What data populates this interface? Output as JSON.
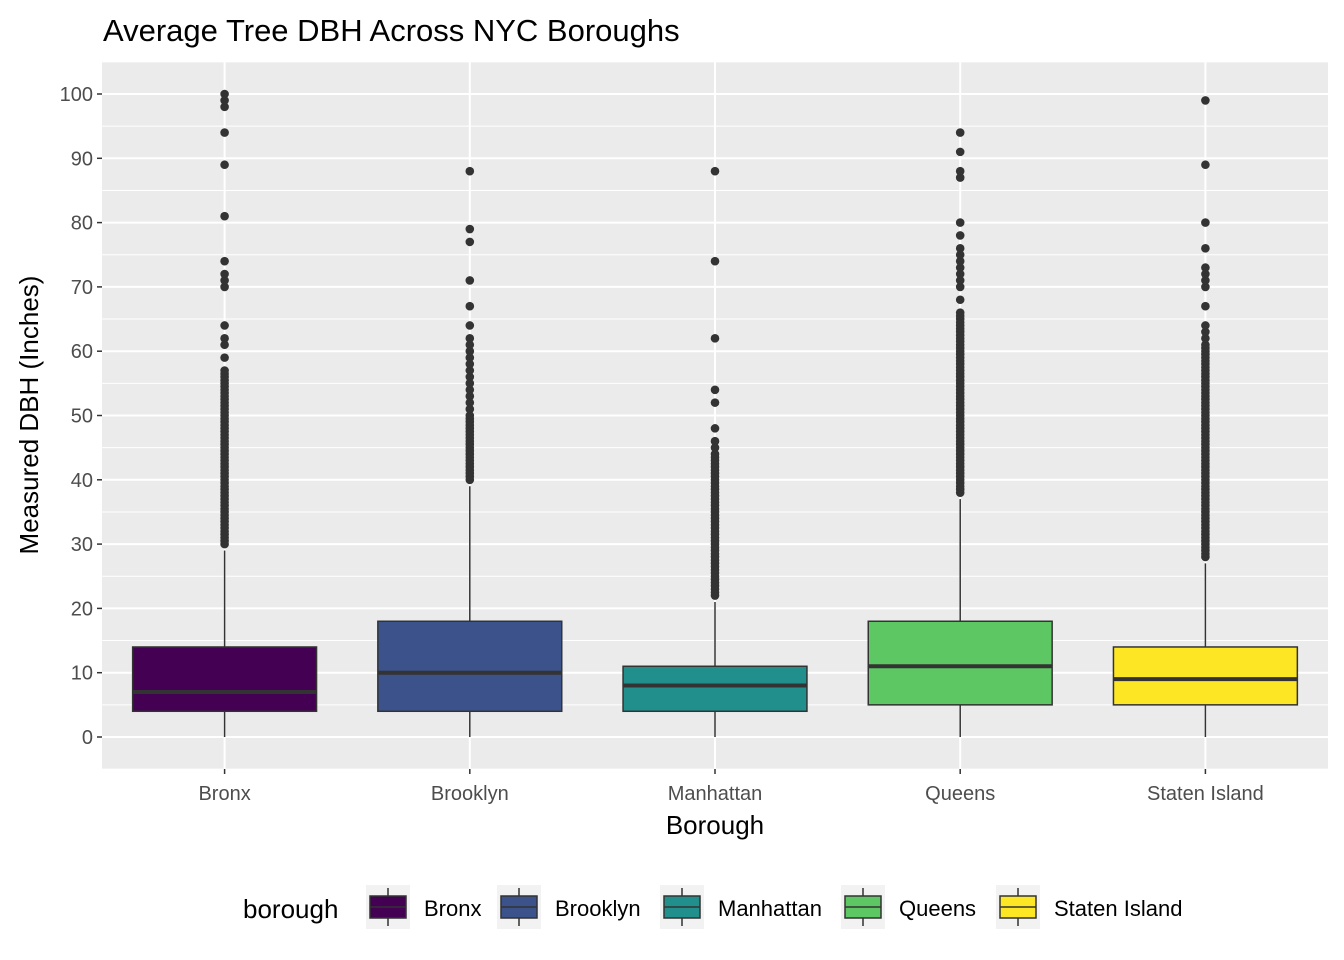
{
  "chart_data": {
    "type": "boxplot",
    "title": "Average Tree DBH Across NYC Boroughs",
    "xlabel": "Borough",
    "ylabel": "Measured DBH (Inches)",
    "ylim": [
      -5,
      105
    ],
    "yticks": [
      0,
      10,
      20,
      30,
      40,
      50,
      60,
      70,
      80,
      90,
      100
    ],
    "grid": true,
    "legend_title": "borough",
    "legend_position": "bottom",
    "categories": [
      "Bronx",
      "Brooklyn",
      "Manhattan",
      "Queens",
      "Staten Island"
    ],
    "series": [
      {
        "name": "Bronx",
        "color": "#440154",
        "whisker_low": 0,
        "q1": 4,
        "median": 7,
        "q3": 14,
        "whisker_high": 29,
        "outliers": [
          30,
          30.5,
          31,
          31.5,
          32,
          32.5,
          33,
          33.5,
          34,
          34.5,
          35,
          35.5,
          36,
          36.5,
          37,
          37.5,
          38,
          38.5,
          39,
          39.5,
          40,
          40.5,
          41,
          41.5,
          42,
          42.5,
          43,
          43.5,
          44,
          44.5,
          45,
          45.5,
          46,
          46.5,
          47,
          47.5,
          48,
          48.5,
          49,
          49.5,
          50,
          50.5,
          51,
          51.5,
          52,
          52.5,
          53,
          53.5,
          54,
          54.5,
          55,
          55.5,
          56,
          56.5,
          57,
          59,
          61,
          62,
          64,
          70,
          71,
          72,
          74,
          81,
          89,
          94,
          98,
          99,
          100
        ]
      },
      {
        "name": "Brooklyn",
        "color": "#3B528B",
        "whisker_low": 0,
        "q1": 4,
        "median": 10,
        "q3": 18,
        "whisker_high": 39,
        "outliers": [
          40,
          40.5,
          41,
          41.5,
          42,
          42.5,
          43,
          43.5,
          44,
          44.5,
          45,
          45.5,
          46,
          46.5,
          47,
          47.5,
          48,
          48.5,
          49,
          49.5,
          50,
          51,
          52,
          53,
          54,
          55,
          56,
          57,
          58,
          59,
          60,
          61,
          62,
          64,
          67,
          71,
          77,
          79,
          88
        ]
      },
      {
        "name": "Manhattan",
        "color": "#21908C",
        "whisker_low": 0,
        "q1": 4,
        "median": 8,
        "q3": 11,
        "whisker_high": 21,
        "outliers": [
          22,
          22.5,
          23,
          23.5,
          24,
          24.5,
          25,
          25.5,
          26,
          26.5,
          27,
          27.5,
          28,
          28.5,
          29,
          29.5,
          30,
          30.5,
          31,
          31.5,
          32,
          32.5,
          33,
          33.5,
          34,
          34.5,
          35,
          35.5,
          36,
          36.5,
          37,
          37.5,
          38,
          38.5,
          39,
          39.5,
          40,
          40.5,
          41,
          41.5,
          42,
          42.5,
          43,
          43.5,
          44,
          45,
          46,
          48,
          52,
          54,
          62,
          74,
          88
        ]
      },
      {
        "name": "Queens",
        "color": "#5DC863",
        "whisker_low": 0,
        "q1": 5,
        "median": 11,
        "q3": 18,
        "whisker_high": 37,
        "outliers": [
          38,
          38.5,
          39,
          39.5,
          40,
          40.5,
          41,
          41.5,
          42,
          42.5,
          43,
          43.5,
          44,
          44.5,
          45,
          45.5,
          46,
          46.5,
          47,
          47.5,
          48,
          48.5,
          49,
          49.5,
          50,
          50.5,
          51,
          51.5,
          52,
          52.5,
          53,
          53.5,
          54,
          54.5,
          55,
          55.5,
          56,
          56.5,
          57,
          57.5,
          58,
          58.5,
          59,
          59.5,
          60,
          60.5,
          61,
          61.5,
          62,
          62.5,
          63,
          63.5,
          64,
          64.5,
          65,
          65.5,
          66,
          68,
          70,
          71,
          72,
          73,
          74,
          75,
          76,
          78,
          80,
          87,
          88,
          91,
          94
        ]
      },
      {
        "name": "Staten Island",
        "color": "#FDE725",
        "whisker_low": 0,
        "q1": 5,
        "median": 9,
        "q3": 14,
        "whisker_high": 27,
        "outliers": [
          28,
          28.5,
          29,
          29.5,
          30,
          30.5,
          31,
          31.5,
          32,
          32.5,
          33,
          33.5,
          34,
          34.5,
          35,
          35.5,
          36,
          36.5,
          37,
          37.5,
          38,
          38.5,
          39,
          39.5,
          40,
          40.5,
          41,
          41.5,
          42,
          42.5,
          43,
          43.5,
          44,
          44.5,
          45,
          45.5,
          46,
          46.5,
          47,
          47.5,
          48,
          48.5,
          49,
          49.5,
          50,
          50.5,
          51,
          51.5,
          52,
          52.5,
          53,
          53.5,
          54,
          54.5,
          55,
          55.5,
          56,
          56.5,
          57,
          57.5,
          58,
          58.5,
          59,
          59.5,
          60,
          60.5,
          61,
          62,
          63,
          64,
          67,
          70,
          71,
          72,
          73,
          76,
          80,
          89,
          99
        ]
      }
    ]
  }
}
